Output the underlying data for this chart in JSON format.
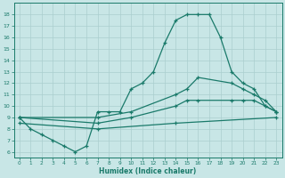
{
  "xlabel": "Humidex (Indice chaleur)",
  "xlim": [
    -0.5,
    23.5
  ],
  "ylim": [
    5.5,
    19
  ],
  "yticks": [
    6,
    7,
    8,
    9,
    10,
    11,
    12,
    13,
    14,
    15,
    16,
    17,
    18
  ],
  "xticks": [
    0,
    1,
    2,
    3,
    4,
    5,
    6,
    7,
    8,
    9,
    10,
    11,
    12,
    13,
    14,
    15,
    16,
    17,
    18,
    19,
    20,
    21,
    22,
    23
  ],
  "bg_color": "#c8e6e6",
  "line_color": "#1a7a6a",
  "grid_color": "#aacece",
  "line1_x": [
    0,
    1,
    2,
    3,
    4,
    5,
    6,
    7,
    8,
    9,
    10,
    11,
    12,
    13,
    14,
    15,
    16,
    17,
    18,
    19,
    20,
    21,
    22,
    23
  ],
  "line1_y": [
    9,
    8,
    7.5,
    7,
    6.5,
    6,
    6.5,
    9.5,
    9.5,
    9.5,
    11.5,
    12,
    13,
    15.5,
    17.5,
    18,
    18,
    18,
    16,
    13,
    12,
    11.5,
    10,
    9.5
  ],
  "line2_x": [
    0,
    7,
    10,
    14,
    15,
    16,
    19,
    20,
    21,
    22,
    23
  ],
  "line2_y": [
    9,
    9,
    9.5,
    11,
    11.5,
    12.5,
    12,
    11.5,
    11,
    10.5,
    9.5
  ],
  "line3_x": [
    0,
    7,
    10,
    14,
    15,
    16,
    19,
    20,
    21,
    22,
    23
  ],
  "line3_y": [
    9,
    8.5,
    9,
    10,
    10.5,
    10.5,
    10.5,
    10.5,
    10.5,
    10,
    9.5
  ],
  "line4_x": [
    0,
    7,
    14,
    23
  ],
  "line4_y": [
    8.5,
    8,
    8.5,
    9
  ]
}
